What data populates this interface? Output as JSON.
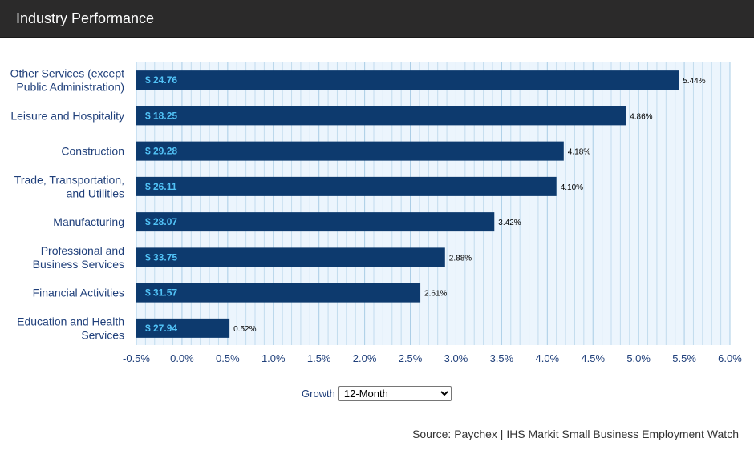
{
  "header": {
    "title": "Industry Performance"
  },
  "controls": {
    "growth_label": "Growth",
    "growth_selected": "12-Month",
    "growth_options": [
      "12-Month"
    ]
  },
  "source": "Source: Paychex | IHS Markit Small Business Employment Watch",
  "colors": {
    "bar": "#0d3a6e",
    "wage_text": "#52c3f7",
    "axis_text": "#1f3f7a",
    "plot_bg": "#ecf5fd",
    "grid": "#c2dcee"
  },
  "chart_data": {
    "type": "bar",
    "orientation": "horizontal",
    "title": "",
    "xlabel": "",
    "ylabel": "",
    "xlim": [
      -0.5,
      6.0
    ],
    "grid": true,
    "x_ticks": [
      "-0.5%",
      "0.0%",
      "0.5%",
      "1.0%",
      "1.5%",
      "2.0%",
      "2.5%",
      "3.0%",
      "3.5%",
      "4.0%",
      "4.5%",
      "5.0%",
      "5.5%",
      "6.0%"
    ],
    "categories": [
      [
        "Other Services (except",
        "Public Administration)"
      ],
      [
        "Leisure and Hospitality"
      ],
      [
        "Construction"
      ],
      [
        "Trade, Transportation,",
        "and Utilities"
      ],
      [
        "Manufacturing"
      ],
      [
        "Professional and",
        "Business Services"
      ],
      [
        "Financial Activities"
      ],
      [
        "Education and Health",
        "Services"
      ]
    ],
    "values": [
      5.44,
      4.86,
      4.18,
      4.1,
      3.42,
      2.88,
      2.61,
      0.52
    ],
    "value_labels": [
      "5.44%",
      "4.86%",
      "4.18%",
      "4.10%",
      "3.42%",
      "2.88%",
      "2.61%",
      "0.52%"
    ],
    "wage_labels": [
      "$ 24.76",
      "$ 18.25",
      "$ 29.28",
      "$ 26.11",
      "$ 28.07",
      "$ 33.75",
      "$ 31.57",
      "$ 27.94"
    ]
  }
}
